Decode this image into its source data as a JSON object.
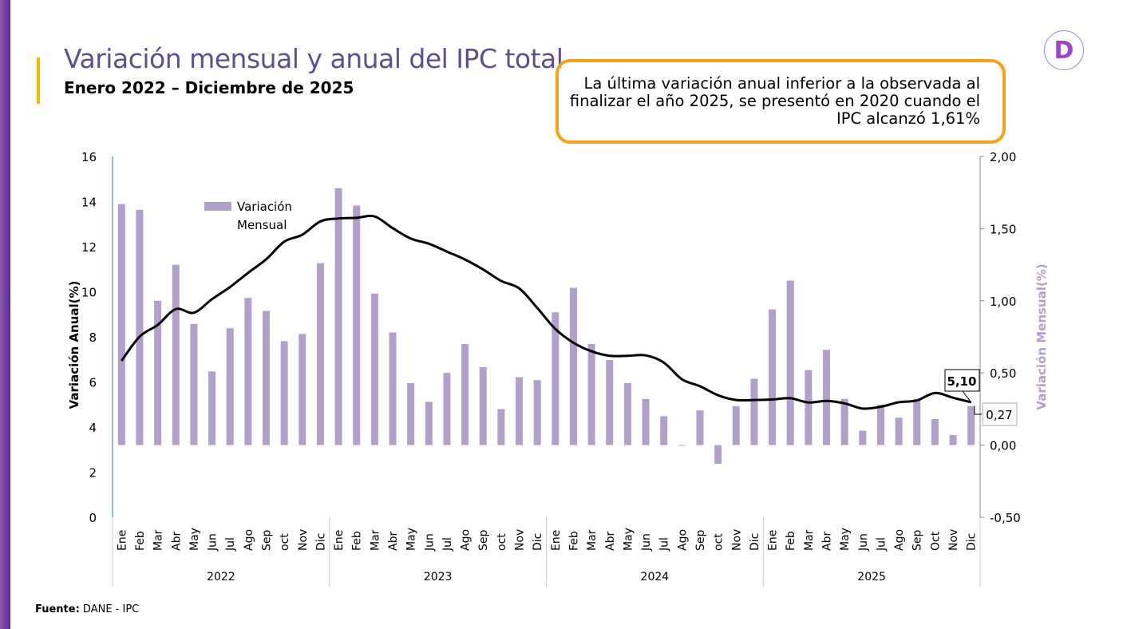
{
  "header": {
    "title": "Variación mensual y anual del IPC total",
    "subtitle": "Enero 2022 – Diciembre de 2025",
    "logo_letter": "D"
  },
  "callout": {
    "text": "La última variación anual inferior  a la observada al finalizar el año 2025, se presentó en 2020 cuando el IPC alcanzó 1,61%"
  },
  "footer": {
    "source_label": "Fuente:",
    "source_value": " DANE - IPC"
  },
  "colors": {
    "bar": "#b1a0c9",
    "line": "#000000",
    "title": "#5e4f8e",
    "callout_border": "#f5a11a"
  },
  "chart_data": {
    "type": "bar+line",
    "title": "Variación mensual y anual del IPC total",
    "ylabel": "Variación Anual(%)",
    "y2label": "Variación Mensual(%)",
    "ylim": [
      0,
      16
    ],
    "y2lim": [
      -0.5,
      2.0
    ],
    "yticks": [
      "0",
      "2",
      "4",
      "6",
      "8",
      "10",
      "12",
      "14",
      "16"
    ],
    "y2ticks": [
      "-0,50",
      "0,00",
      "0,50",
      "1,00",
      "1,50",
      "2,00"
    ],
    "years": [
      "2022",
      "2023",
      "2024",
      "2025"
    ],
    "months": [
      "Ene",
      "Feb",
      "Mar",
      "Abr",
      "May",
      "Jun",
      "Jul",
      "Ago",
      "Sep",
      "oct",
      "Nov",
      "Dic",
      "Ene",
      "Feb",
      "Mar",
      "Abr",
      "May",
      "Jun",
      "Jul",
      "Ago",
      "Sep",
      "oct",
      "Nov",
      "Dic",
      "Ene",
      "Feb",
      "Mar",
      "Abr",
      "May",
      "Jun",
      "Jul",
      "Ago",
      "Sep",
      "oct",
      "Nov",
      "Dic",
      "Ene",
      "Feb",
      "Mar",
      "Abr",
      "May",
      "Jun",
      "Jul",
      "Ago",
      "Sep",
      "Oct",
      "Nov",
      "Dic"
    ],
    "legend": {
      "label": "Variación Mensual",
      "placement": "top-left"
    },
    "series": [
      {
        "name": "Variación Mensual",
        "axis": "right",
        "type": "bar",
        "values": [
          1.67,
          1.63,
          1.0,
          1.25,
          0.84,
          0.51,
          0.81,
          1.02,
          0.93,
          0.72,
          0.77,
          1.26,
          1.78,
          1.66,
          1.05,
          0.78,
          0.43,
          0.3,
          0.5,
          0.7,
          0.54,
          0.25,
          0.47,
          0.45,
          0.92,
          1.09,
          0.7,
          0.59,
          0.43,
          0.32,
          0.2,
          0.0,
          0.24,
          -0.13,
          0.27,
          0.46,
          0.94,
          1.14,
          0.52,
          0.66,
          0.32,
          0.1,
          0.28,
          0.19,
          0.32,
          0.18,
          0.07,
          0.27
        ]
      },
      {
        "name": "Variación Anual",
        "axis": "left",
        "type": "line",
        "values": [
          6.94,
          8.01,
          8.53,
          9.23,
          9.07,
          9.67,
          10.21,
          10.84,
          11.44,
          12.22,
          12.53,
          13.12,
          13.25,
          13.28,
          13.34,
          12.82,
          12.36,
          12.13,
          11.78,
          11.43,
          10.99,
          10.48,
          10.15,
          9.28,
          8.35,
          7.74,
          7.36,
          7.16,
          7.16,
          7.18,
          6.86,
          6.12,
          5.81,
          5.41,
          5.2,
          5.2,
          5.22,
          5.28,
          5.09,
          5.16,
          5.05,
          4.82,
          4.9,
          5.1,
          5.18,
          5.51,
          5.3,
          5.1
        ]
      }
    ],
    "annotations": {
      "last_annual": "5,10",
      "last_monthly": "0,27"
    }
  }
}
